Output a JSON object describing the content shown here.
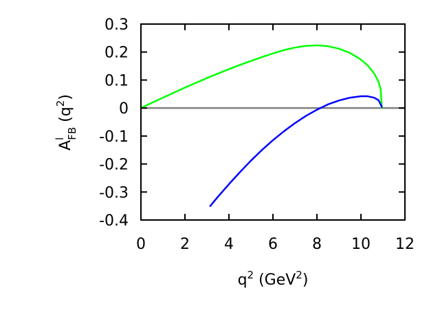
{
  "chart_data": {
    "type": "line",
    "xlim": [
      0,
      12
    ],
    "ylim": [
      -0.4,
      0.3
    ],
    "xticks": [
      "0",
      "2",
      "4",
      "6",
      "8",
      "10",
      "12"
    ],
    "xtick_values": [
      0,
      2,
      4,
      6,
      8,
      10,
      12
    ],
    "yticks": [
      "0.3",
      "0.2",
      "0.1",
      "0",
      "-0.1",
      "-0.2",
      "-0.3",
      "-0.4"
    ],
    "ytick_values": [
      0.3,
      0.2,
      0.1,
      0,
      -0.1,
      -0.2,
      -0.3,
      -0.4
    ],
    "xlabel": {
      "base": "q",
      "sup": "2",
      "unit_open": " (GeV",
      "unit_sup": "2",
      "unit_close": ")"
    },
    "ylabel": {
      "base": "A",
      "sup": "l",
      "sub": "FB",
      "arg_open": " (q",
      "arg_sup": "2",
      "arg_close": ")"
    },
    "grid": false,
    "zero_line": {
      "y": 0,
      "color": "#808080"
    },
    "series": [
      {
        "color": "#00ff00",
        "x": [
          0,
          0.5,
          1,
          1.5,
          2,
          2.5,
          3,
          3.5,
          4,
          4.5,
          5,
          5.5,
          6,
          6.5,
          7,
          7.5,
          8,
          8.5,
          9,
          9.5,
          10,
          10.3,
          10.6,
          10.8,
          10.9,
          10.95
        ],
        "y": [
          0,
          0.019,
          0.037,
          0.055,
          0.073,
          0.09,
          0.107,
          0.123,
          0.139,
          0.154,
          0.168,
          0.182,
          0.195,
          0.207,
          0.216,
          0.222,
          0.224,
          0.221,
          0.212,
          0.197,
          0.173,
          0.153,
          0.124,
          0.094,
          0.066,
          0.0
        ]
      },
      {
        "color": "#0000ff",
        "x": [
          3.15,
          3.5,
          4,
          4.5,
          5,
          5.5,
          6,
          6.5,
          7,
          7.5,
          8,
          8.5,
          9,
          9.5,
          10,
          10.3,
          10.6,
          10.8,
          10.95
        ],
        "y": [
          -0.35,
          -0.317,
          -0.272,
          -0.229,
          -0.188,
          -0.15,
          -0.115,
          -0.083,
          -0.054,
          -0.028,
          -0.006,
          0.013,
          0.027,
          0.037,
          0.042,
          0.042,
          0.037,
          0.028,
          0.004
        ]
      }
    ]
  }
}
